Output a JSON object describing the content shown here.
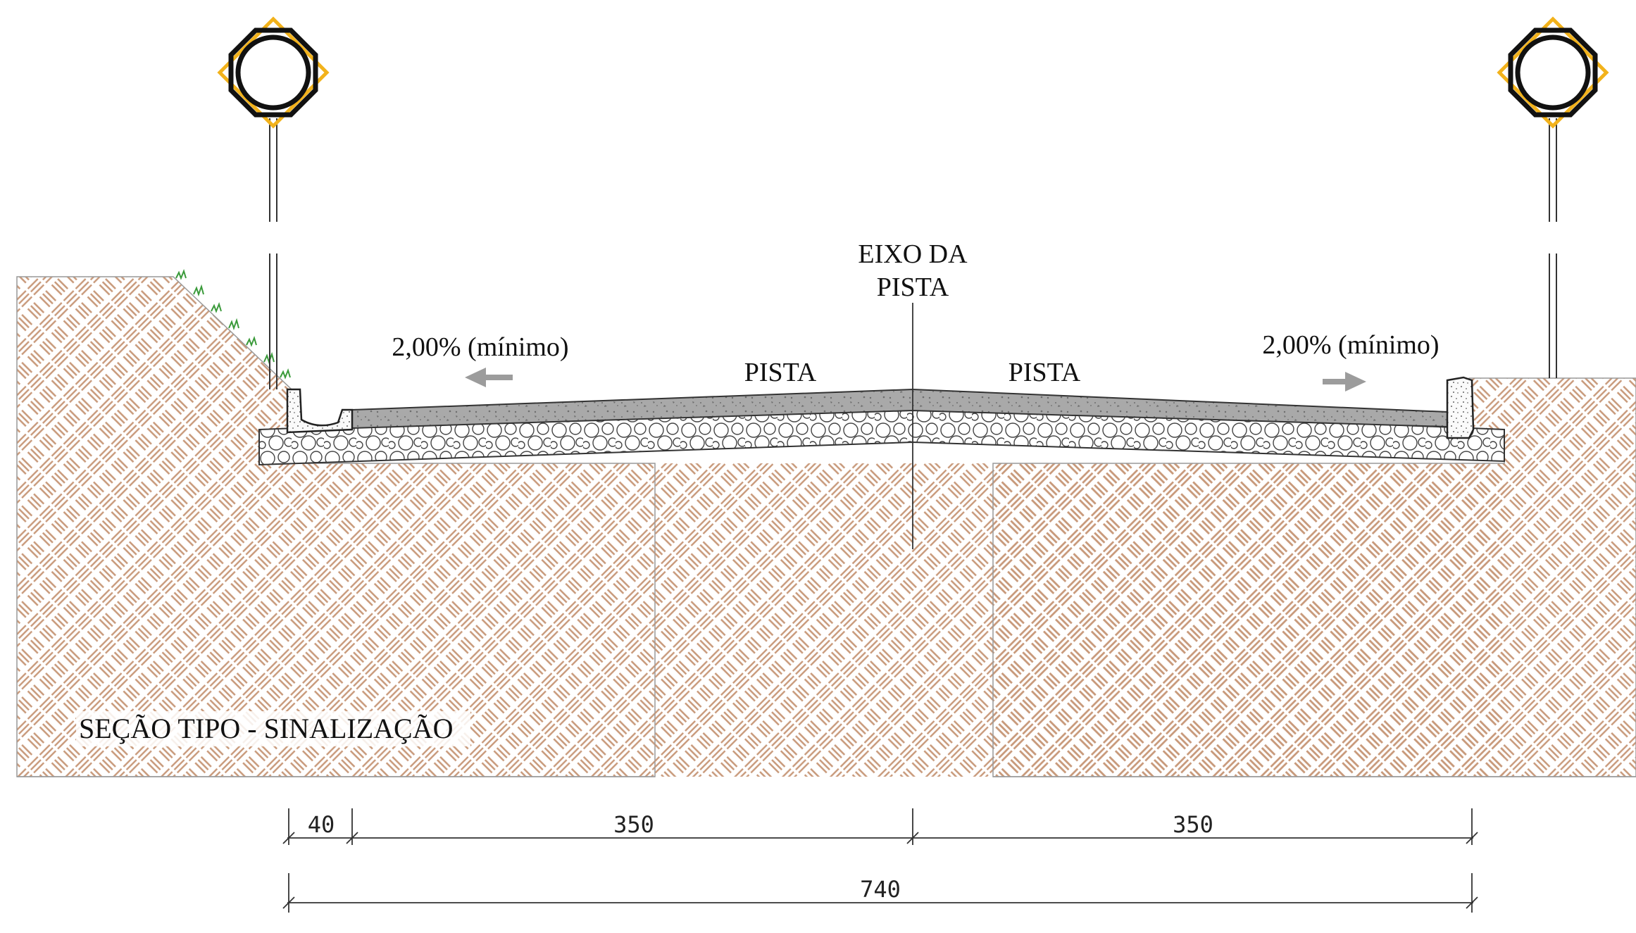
{
  "title": "SEÇÃO TIPO - SINALIZAÇÃO",
  "centerline_label": {
    "line1": "EIXO DA",
    "line2": "PISTA"
  },
  "lanes": [
    {
      "label": "PISTA",
      "slope": "2,00% (mínimo)",
      "direction": "left"
    },
    {
      "label": "PISTA",
      "slope": "2,00% (mínimo)",
      "direction": "right"
    }
  ],
  "dimensions": {
    "gutter": "40",
    "left_lane": "350",
    "right_lane": "350",
    "total": "740"
  },
  "signs": [
    {
      "id": "left-sign",
      "shape": "circle-in-diamond"
    },
    {
      "id": "right-sign",
      "shape": "circle-in-diamond"
    }
  ],
  "colors": {
    "soil_hatch": "#c8997a",
    "pavement": "#a9a9a9",
    "sign_diamond": "#f2b21b",
    "grass": "#3a9a3a",
    "arrow": "#9c9c9c"
  }
}
